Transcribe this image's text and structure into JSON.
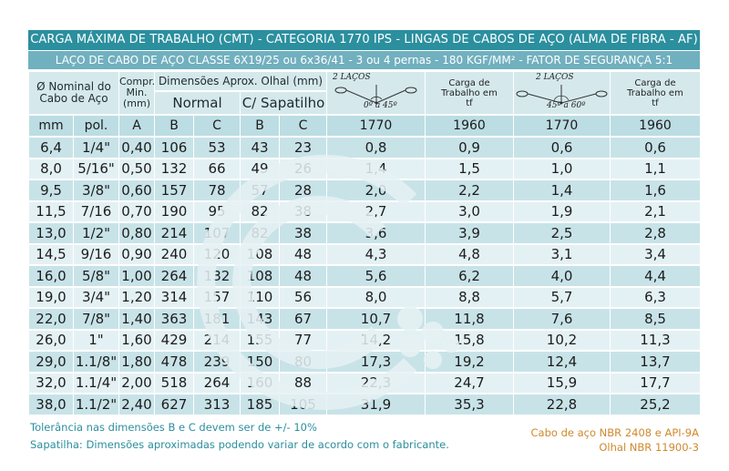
{
  "title_main": "CARGA MÁXIMA DE TRABALHO (CMT) - CATEGORIA 1770 IPS - LINGAS DE CABOS DE AÇO (ALMA DE FIBRA - AF)",
  "title_sub": "LAÇO DE CABO DE AÇO CLASSE 6X19/25 ou 6x36/41 - 3 ou 4 pernas - 180 KGF/MM² - FATOR DE SEGURANÇA 5:1",
  "headers": {
    "nominal": "Ø Nominal do Cabo de Aço",
    "compr": "Compr. Min. (mm)",
    "dim": "Dimensões Aprox. Olhal (mm)",
    "normal": "Normal",
    "sapatilho": "C/ Sapatilho",
    "diagram1_label": "2 LAÇOS",
    "diagram1_angle": "0º a 45º",
    "diagram2_label": "2 LAÇOS",
    "diagram2_angle": "45º a 60º",
    "carga_label": "Carga de Trabalho em tf"
  },
  "units": [
    "mm",
    "pol.",
    "A",
    "B",
    "C",
    "B",
    "C",
    "1770",
    "1960",
    "1770",
    "1960"
  ],
  "rows": [
    [
      "6,4",
      "1/4\"",
      "0,40",
      "106",
      "53",
      "43",
      "23",
      "0,8",
      "0,9",
      "0,6",
      "0,6"
    ],
    [
      "8,0",
      "5/16\"",
      "0,50",
      "132",
      "66",
      "49",
      "26",
      "1,4",
      "1,5",
      "1,0",
      "1,1"
    ],
    [
      "9,5",
      "3/8\"",
      "0,60",
      "157",
      "78",
      "57",
      "28",
      "2,0",
      "2,2",
      "1,4",
      "1,6"
    ],
    [
      "11,5",
      "7/16",
      "0,70",
      "190",
      "95",
      "82",
      "38",
      "2,7",
      "3,0",
      "1,9",
      "2,1"
    ],
    [
      "13,0",
      "1/2\"",
      "0,80",
      "214",
      "107",
      "82",
      "38",
      "3,6",
      "3,9",
      "2,5",
      "2,8"
    ],
    [
      "14,5",
      "9/16",
      "0,90",
      "240",
      "120",
      "108",
      "48",
      "4,3",
      "4,8",
      "3,1",
      "3,4"
    ],
    [
      "16,0",
      "5/8\"",
      "1,00",
      "264",
      "132",
      "108",
      "48",
      "5,6",
      "6,2",
      "4,0",
      "4,4"
    ],
    [
      "19,0",
      "3/4\"",
      "1,20",
      "314",
      "157",
      "110",
      "56",
      "8,0",
      "8,8",
      "5,7",
      "6,3"
    ],
    [
      "22,0",
      "7/8\"",
      "1,40",
      "363",
      "181",
      "143",
      "67",
      "10,7",
      "11,8",
      "7,6",
      "8,5"
    ],
    [
      "26,0",
      "1\"",
      "1,60",
      "429",
      "214",
      "155",
      "77",
      "14,2",
      "15,8",
      "10,2",
      "11,3"
    ],
    [
      "29,0",
      "1.1/8\"",
      "1,80",
      "478",
      "239",
      "150",
      "80",
      "17,3",
      "19,2",
      "12,4",
      "13,7"
    ],
    [
      "32,0",
      "1.1/4\"",
      "2,00",
      "518",
      "264",
      "160",
      "88",
      "22,3",
      "24,7",
      "15,9",
      "17,7"
    ],
    [
      "38,0",
      "1.1/2\"",
      "2,40",
      "627",
      "313",
      "185",
      "105",
      "31,9",
      "35,3",
      "22,8",
      "25,2"
    ]
  ],
  "footer": {
    "tolerancia": "Tolerância nas dimensões B e C devem ser de +/- 10%",
    "sapatilha": "Sapatilha: Dimensões aproximadas podendo variar de acordo com o fabricante.",
    "norma_cabo": "Cabo de aço NBR 2408 e API-9A",
    "norma_olhal": "Olhal NBR 11900-3"
  },
  "colors": {
    "header_dark": "#2b8f9e",
    "header_light": "#71b0bf",
    "row_odd": "#c8e3e8",
    "row_even": "#e4f1f4",
    "footer_left": "#2b8f9e",
    "footer_right": "#d0892d"
  }
}
